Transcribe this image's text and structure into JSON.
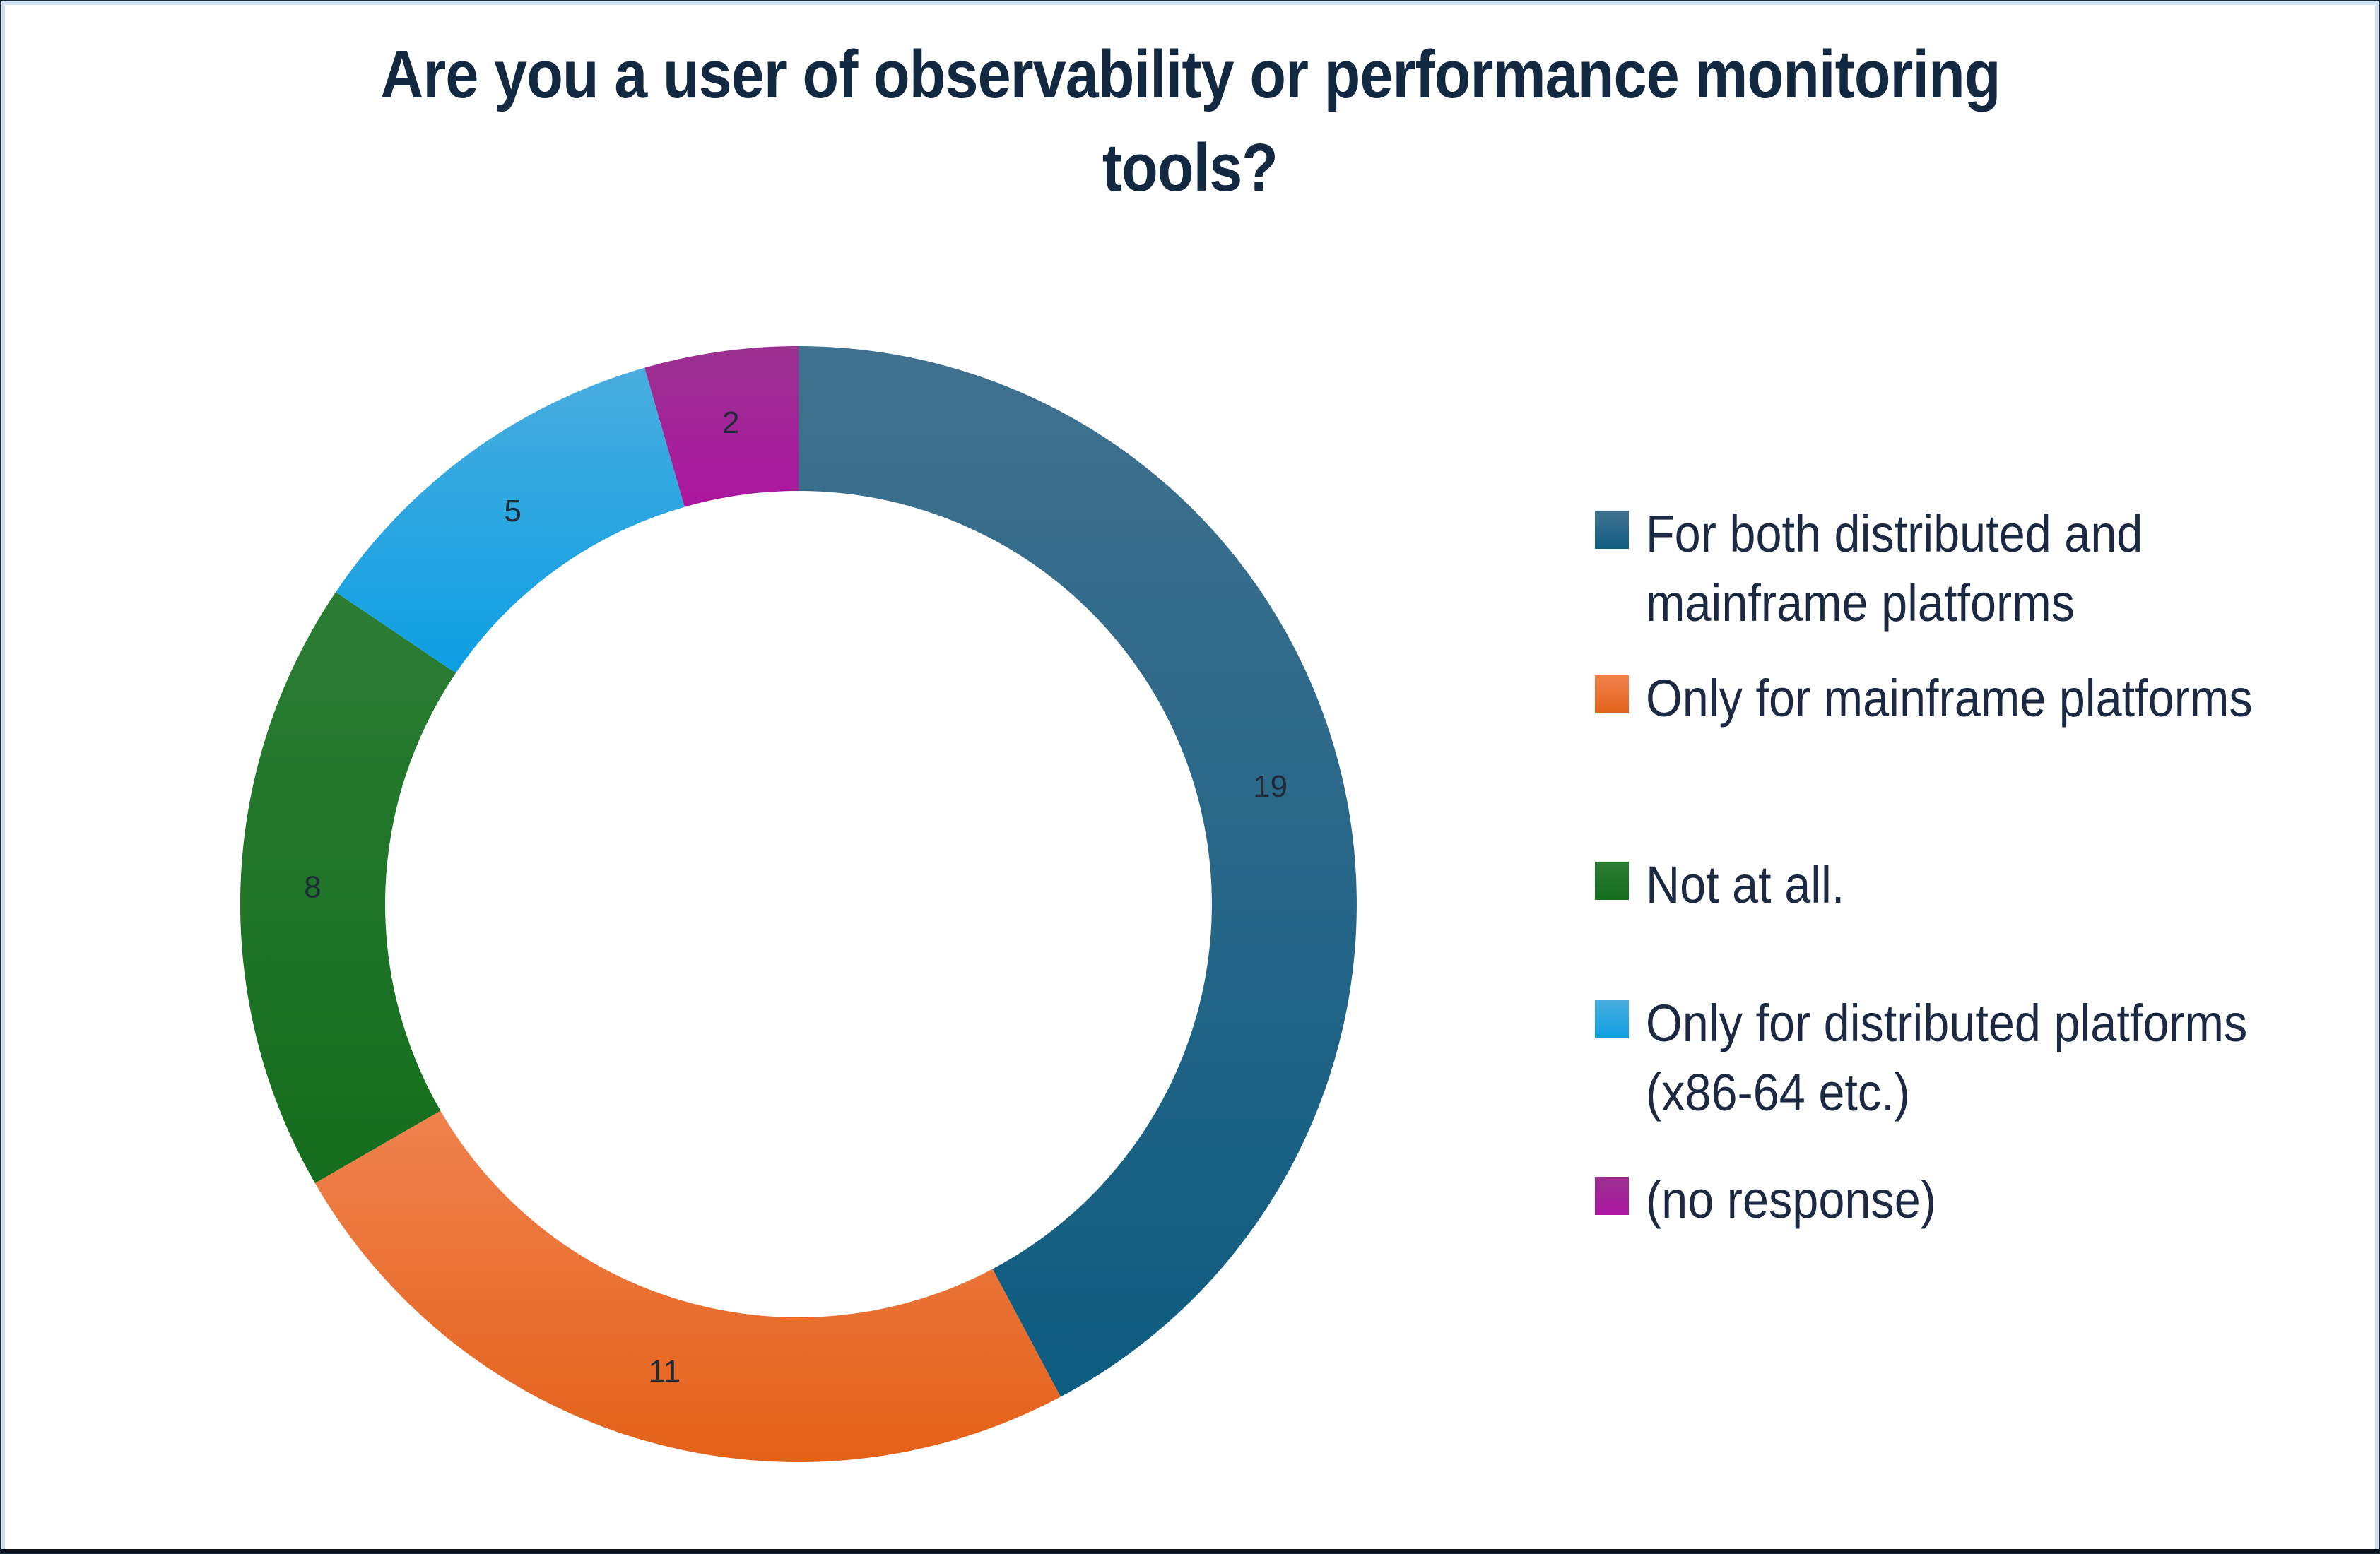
{
  "title": "Are you a user of observability or performance monitoring tools?",
  "title_lines": {
    "line1": "Are you a user of observability or performance monitoring",
    "line2": "tools?"
  },
  "chart_data": {
    "type": "pie",
    "subtype": "donut",
    "title": "Are you a user of observability or performance monitoring tools?",
    "categories": [
      "For both distributed and mainframe platforms",
      "Only for  mainframe platforms",
      "Not at all.",
      "Only for distributed platforms (x86-64 etc.)",
      "(no response)"
    ],
    "values": [
      19,
      11,
      8,
      5,
      2
    ],
    "total": 45,
    "data_labels": [
      "19",
      "11",
      "8",
      "5",
      "2"
    ],
    "start_angle_deg": 0,
    "direction": "clockwise",
    "legend_position": "right",
    "label_color": "#1e2b3a",
    "title_color": "#132942",
    "slice_colors": [
      {
        "top": "#41718F",
        "bottom": "#0D5C80"
      },
      {
        "top": "#F0824F",
        "bottom": "#E36118"
      },
      {
        "top": "#2B7D33",
        "bottom": "#146D1D"
      },
      {
        "top": "#49ADDE",
        "bottom": "#0D9FE3"
      },
      {
        "top": "#9A3190",
        "bottom": "#AC16A0"
      }
    ]
  },
  "legend": {
    "items": [
      {
        "lines": [
          "For both distributed and",
          "mainframe platforms"
        ],
        "color_top": "#41718F",
        "color_bottom": "#115E83"
      },
      {
        "lines": [
          "Only for  mainframe platforms"
        ],
        "color_top": "#F0824F",
        "color_bottom": "#E36118"
      },
      {
        "lines": [
          "Not at all."
        ],
        "color_top": "#2B7D33",
        "color_bottom": "#146D1D"
      },
      {
        "lines": [
          "Only for distributed platforms",
          "(x86-64 etc.)"
        ],
        "color_top": "#49ADDE",
        "color_bottom": "#0D9FE3"
      },
      {
        "lines": [
          "(no response)"
        ],
        "color_top": "#9A3190",
        "color_bottom": "#AC16A0"
      }
    ]
  }
}
